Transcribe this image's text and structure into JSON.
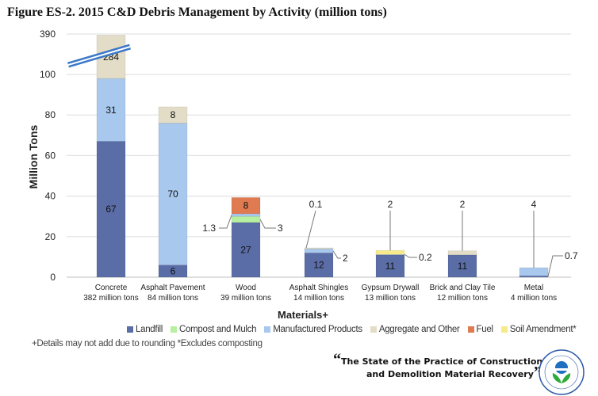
{
  "title": "Figure ES-2. 2015 C&D Debris Management by Activity (million tons)",
  "chart_data": {
    "type": "bar",
    "stacked": true,
    "title": "Figure ES-2. 2015 C&D Debris Management by Activity (million tons)",
    "xlabel": "Materials+",
    "ylabel": "Million Tons",
    "ylim": [
      0,
      390
    ],
    "axis_break": [
      100,
      390
    ],
    "yticks": [
      "0",
      "20",
      "40",
      "60",
      "80",
      "100",
      "390"
    ],
    "grid": true,
    "legend_position": "bottom",
    "categories": [
      {
        "name": "Concrete",
        "sub": "382 million tons"
      },
      {
        "name": "Asphalt Pavement",
        "sub": "84 million tons"
      },
      {
        "name": "Wood",
        "sub": "39 million tons"
      },
      {
        "name": "Asphalt Shingles",
        "sub": "14 million tons"
      },
      {
        "name": "Gypsum Drywall",
        "sub": "13 million tons"
      },
      {
        "name": "Brick and Clay Tile",
        "sub": "12 million tons"
      },
      {
        "name": "Metal",
        "sub": "4 million tons"
      }
    ],
    "series": [
      {
        "name": "Landfill",
        "color": "#5a6da6",
        "values": [
          67,
          6,
          27,
          12,
          11,
          11,
          0.7
        ]
      },
      {
        "name": "Compost and Mulch",
        "color": "#b6f0a0",
        "values": [
          0,
          0,
          3,
          0,
          0,
          0,
          0
        ]
      },
      {
        "name": "Manufactured Products",
        "color": "#a9c8ee",
        "values": [
          31,
          70,
          1.3,
          2,
          0.2,
          0,
          4
        ]
      },
      {
        "name": "Aggregate and Other",
        "color": "#e3dcc6",
        "values": [
          284,
          8,
          0,
          0.1,
          0,
          2,
          0
        ]
      },
      {
        "name": "Fuel",
        "color": "#e07a50",
        "values": [
          0,
          0,
          8,
          0,
          0,
          0,
          0
        ]
      },
      {
        "name": "Soil Amendment*",
        "color": "#f7ea8a",
        "values": [
          0,
          0,
          0,
          0,
          2,
          0,
          0
        ]
      }
    ]
  },
  "footnote": "+Details may not add due to rounding *Excludes composting",
  "quote": {
    "open": "“",
    "line1": "The State of the Practice of Construction",
    "line2": "and Demolition Material Recovery",
    "close": "”"
  },
  "logo": {
    "text": "UNITED STATES ENVIRONMENTAL PROTECTION AGENCY"
  }
}
